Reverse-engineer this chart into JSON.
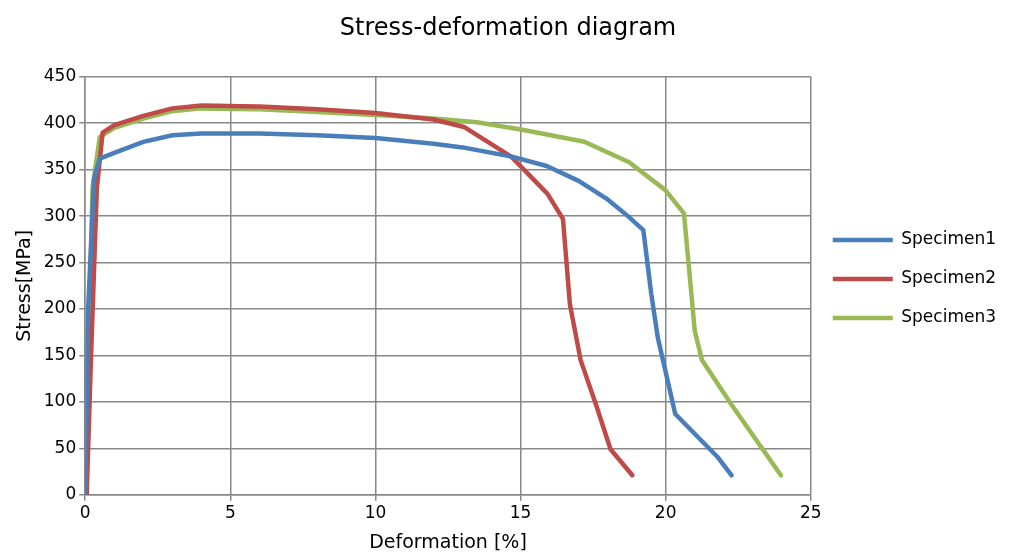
{
  "chart_data": {
    "type": "line",
    "title": "Stress-deformation diagram",
    "xlabel": "Deformation [%]",
    "ylabel": "Stress[MPa]",
    "xlim": [
      0,
      25
    ],
    "xticks": [
      0,
      5,
      10,
      15,
      20,
      25
    ],
    "ylim": [
      0,
      450
    ],
    "yticks": [
      0,
      50,
      100,
      150,
      200,
      250,
      300,
      350,
      400,
      450
    ],
    "grid": true,
    "legend": "right",
    "marker": "none",
    "line_style": "solid",
    "series": [
      {
        "name": "Specimen1",
        "color": "#4a7ebb",
        "x": [
          0,
          0.1,
          0.3,
          0.5,
          1,
          2,
          3,
          4,
          6,
          8,
          10,
          12,
          13,
          14.7,
          15.9,
          17,
          18,
          18.7,
          19.23,
          19.5,
          19.73,
          20.33,
          21.78,
          22.27
        ],
        "values": [
          0,
          200,
          340,
          362,
          368,
          380,
          387,
          389,
          389,
          387,
          384,
          378,
          374,
          364,
          354,
          338,
          318,
          300,
          285,
          217,
          169,
          87,
          41,
          21
        ]
      },
      {
        "name": "Specimen2",
        "color": "#be4b48",
        "x": [
          0.05,
          0.2,
          0.4,
          0.6,
          1,
          2,
          3,
          4,
          6,
          8,
          10,
          12,
          13.05,
          14.68,
          15.93,
          16.46,
          16.7,
          17.07,
          17.6,
          18.1,
          18.85
        ],
        "values": [
          0,
          150,
          330,
          390,
          398,
          408,
          416,
          419,
          418,
          415,
          411,
          404,
          396,
          364,
          324,
          297,
          205,
          145,
          97,
          49,
          21
        ]
      },
      {
        "name": "Specimen3",
        "color": "#98b954",
        "x": [
          0,
          0.1,
          0.25,
          0.5,
          1,
          2,
          3,
          4,
          6,
          8,
          10,
          12,
          13.5,
          15.06,
          17.2,
          18.74,
          19.99,
          20.63,
          21,
          21.25,
          22.27,
          23.97
        ],
        "values": [
          0,
          120,
          330,
          385,
          395,
          405,
          413,
          416,
          415,
          412,
          409,
          405,
          401,
          393,
          380,
          358,
          328,
          303,
          177,
          145,
          97,
          21
        ]
      }
    ]
  }
}
